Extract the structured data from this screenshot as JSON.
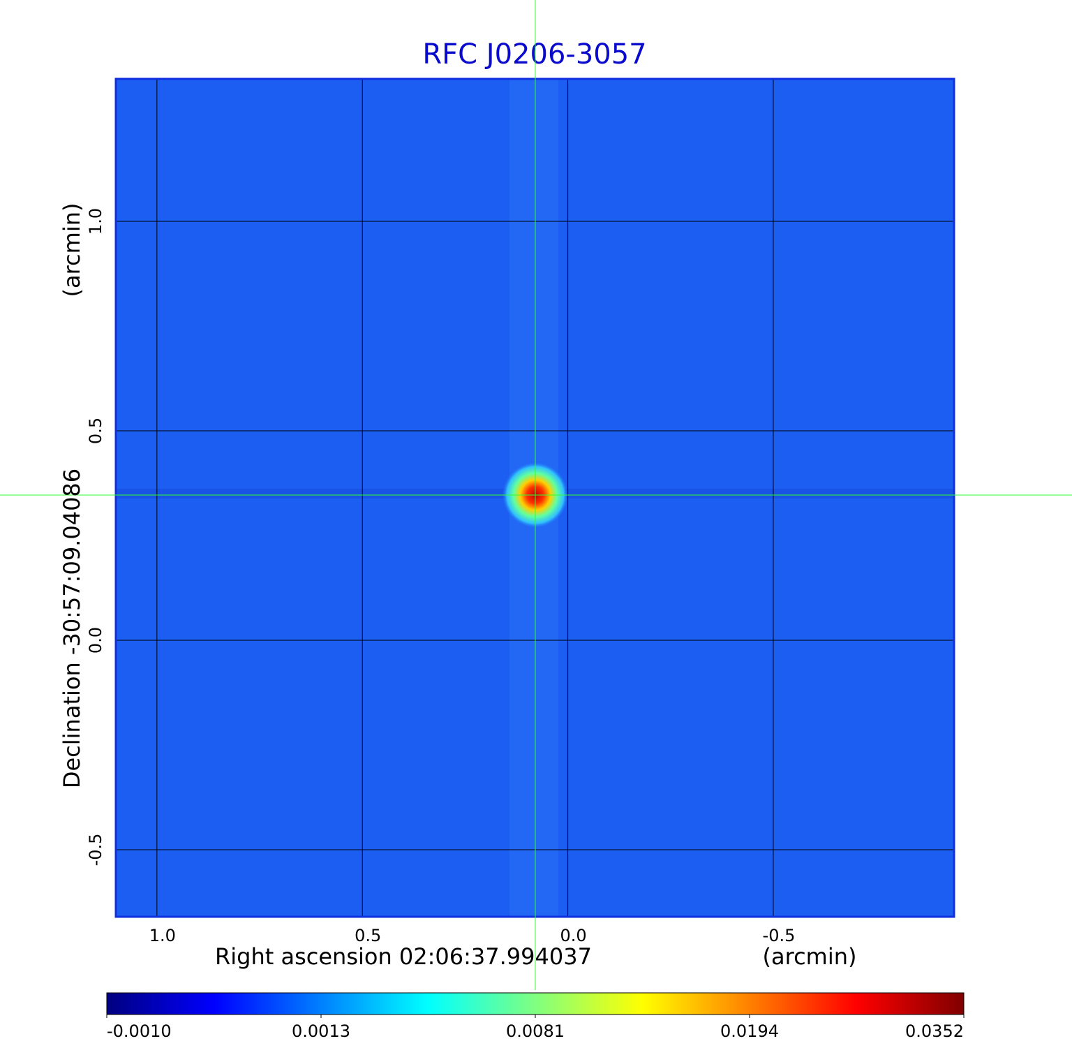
{
  "chart_data": {
    "type": "image",
    "title": "RFC J0206-3057",
    "x_label": "Right ascension  02:06:37.994037",
    "x_unit_label": "(arcmin)",
    "y_label": "Declination  -30:57:09.04086",
    "y_unit_label": "(arcmin)",
    "xlim": [
      1.1,
      -0.94
    ],
    "ylim": [
      -0.66,
      1.34
    ],
    "xticks": [
      {
        "value": 1,
        "label": "1.0"
      },
      0.5,
      {
        "value": 0,
        "label": "0.0"
      },
      -0.5
    ],
    "yticks": [
      -0.5,
      {
        "value": 0,
        "label": "0.0"
      },
      0.5,
      {
        "value": 1,
        "label": "1.0"
      }
    ],
    "grid": true,
    "colorbar": {
      "ticks": [
        {
          "value": -0.001,
          "label": "-0.0010"
        },
        0.0013,
        0.0081,
        0.0194,
        0.0352
      ],
      "colormap": [
        "#000080",
        "#0000ff",
        "#0080ff",
        "#00ffff",
        "#80ff80",
        "#ffff00",
        "#ff8000",
        "#ff0000",
        "#800000"
      ]
    }
  }
}
